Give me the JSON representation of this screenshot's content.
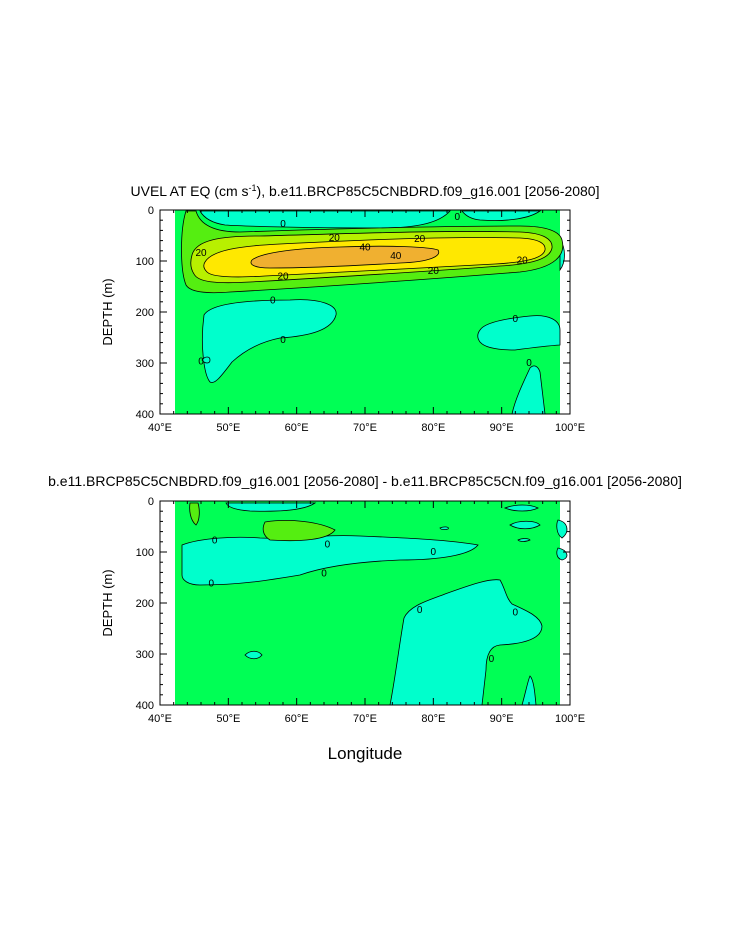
{
  "colors": {
    "green": "#00ff55",
    "cyan": "#00ffcc",
    "lightgreen": "#55ee11",
    "yellowgreen": "#b8f000",
    "yellow": "#ffe800",
    "orange": "#f0b030",
    "white": "#ffffff"
  },
  "common": {
    "x_ticks": [
      "40°E",
      "50°E",
      "60°E",
      "70°E",
      "80°E",
      "90°E",
      "100°E"
    ],
    "y_ticks": [
      "0",
      "100",
      "200",
      "300",
      "400"
    ],
    "ylabel": "DEPTH (m)",
    "xlabel": "Longitude"
  },
  "chart_data": [
    {
      "type": "contour",
      "title": "UVEL AT EQ (cm s⁻¹), b.e11.BRCP85C5CNBDRD.f09_g16.001 [2056-2080]",
      "xlabel": "",
      "ylabel": "DEPTH (m)",
      "xlim": [
        40,
        100
      ],
      "ylim": [
        400,
        0
      ],
      "contour_levels": [
        0,
        20,
        40
      ],
      "contour_labels": [
        {
          "text": "0",
          "x": 58,
          "y": 25
        },
        {
          "text": "0",
          "x": 83.5,
          "y": 12
        },
        {
          "text": "20",
          "x": 46,
          "y": 82
        },
        {
          "text": "20",
          "x": 65.5,
          "y": 53
        },
        {
          "text": "40",
          "x": 70,
          "y": 72
        },
        {
          "text": "40",
          "x": 74.5,
          "y": 88
        },
        {
          "text": "20",
          "x": 78,
          "y": 55
        },
        {
          "text": "20",
          "x": 80,
          "y": 118
        },
        {
          "text": "20",
          "x": 58,
          "y": 128
        },
        {
          "text": "20",
          "x": 93,
          "y": 97
        },
        {
          "text": "0",
          "x": 56.5,
          "y": 175
        },
        {
          "text": "0",
          "x": 58,
          "y": 253
        },
        {
          "text": "0",
          "x": 46,
          "y": 295
        },
        {
          "text": "0",
          "x": 92,
          "y": 212
        },
        {
          "text": "0",
          "x": 94,
          "y": 298
        }
      ]
    },
    {
      "type": "contour",
      "title": "b.e11.BRCP85C5CNBDRD.f09_g16.001 [2056-2080] - b.e11.BRCP85C5CN.f09_g16.001 [2056-2080]",
      "xlabel": "Longitude",
      "ylabel": "DEPTH (m)",
      "xlim": [
        40,
        100
      ],
      "ylim": [
        400,
        0
      ],
      "contour_levels": [
        0
      ],
      "contour_labels": [
        {
          "text": "0",
          "x": 48,
          "y": 75
        },
        {
          "text": "0",
          "x": 47.5,
          "y": 160
        },
        {
          "text": "0",
          "x": 64.5,
          "y": 83
        },
        {
          "text": "0",
          "x": 64,
          "y": 140
        },
        {
          "text": "0",
          "x": 80,
          "y": 98
        },
        {
          "text": "0",
          "x": 78,
          "y": 212
        },
        {
          "text": "0",
          "x": 92,
          "y": 217
        },
        {
          "text": "0",
          "x": 88.5,
          "y": 308
        }
      ]
    }
  ]
}
